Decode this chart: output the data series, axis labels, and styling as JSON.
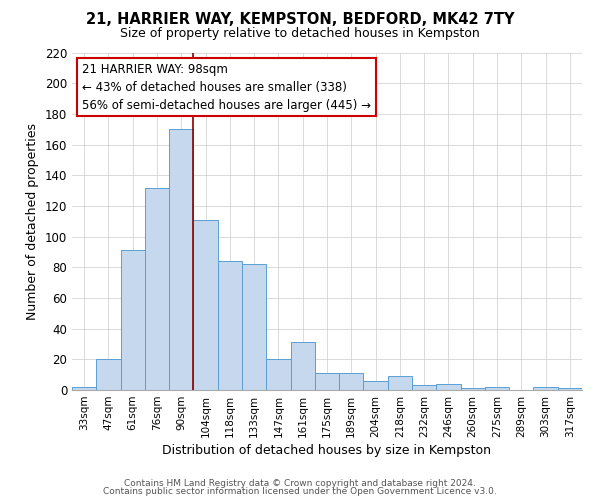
{
  "title": "21, HARRIER WAY, KEMPSTON, BEDFORD, MK42 7TY",
  "subtitle": "Size of property relative to detached houses in Kempston",
  "xlabel": "Distribution of detached houses by size in Kempston",
  "ylabel": "Number of detached properties",
  "bar_color": "#c5d8ed",
  "bar_edge_color": "#5a9fd4",
  "categories": [
    "33sqm",
    "47sqm",
    "61sqm",
    "76sqm",
    "90sqm",
    "104sqm",
    "118sqm",
    "133sqm",
    "147sqm",
    "161sqm",
    "175sqm",
    "189sqm",
    "204sqm",
    "218sqm",
    "232sqm",
    "246sqm",
    "260sqm",
    "275sqm",
    "289sqm",
    "303sqm",
    "317sqm"
  ],
  "values": [
    2,
    20,
    91,
    132,
    170,
    111,
    84,
    82,
    20,
    31,
    11,
    11,
    6,
    9,
    3,
    4,
    1,
    2,
    0,
    2,
    1
  ],
  "ylim": [
    0,
    220
  ],
  "yticks": [
    0,
    20,
    40,
    60,
    80,
    100,
    120,
    140,
    160,
    180,
    200,
    220
  ],
  "vline_position": 4.5,
  "bg_color": "#ffffff",
  "grid_color": "#cccccc",
  "annotation_box_color": "#ffffff",
  "annotation_box_edge": "#cc0000",
  "marker_label": "21 HARRIER WAY: 98sqm",
  "annotation_line1": "← 43% of detached houses are smaller (338)",
  "annotation_line2": "56% of semi-detached houses are larger (445) →",
  "footer1": "Contains HM Land Registry data © Crown copyright and database right 2024.",
  "footer2": "Contains public sector information licensed under the Open Government Licence v3.0."
}
